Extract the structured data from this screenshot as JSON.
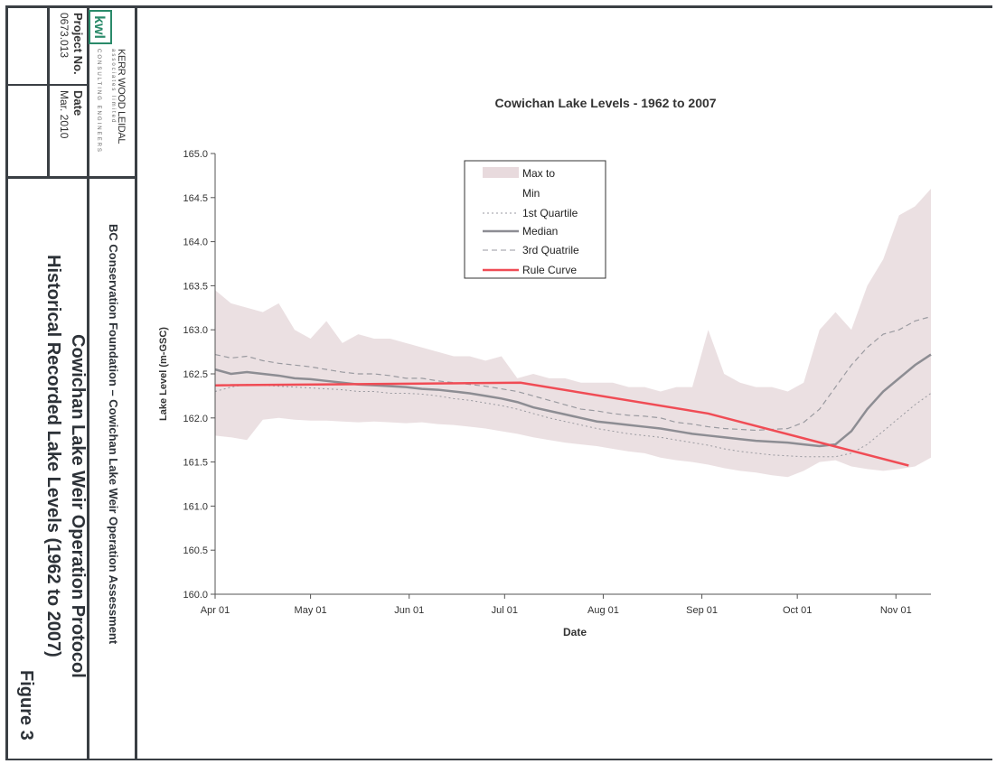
{
  "title_block": {
    "company": "KERR WOOD LEIDAL",
    "company_tagline": "associates limited",
    "company_sub": "CONSULTING ENGINEERS",
    "logo_text": "kwl",
    "project_no_label": "Project No.",
    "project_no": "0673.013",
    "date_label": "Date",
    "date": "Mar. 2010",
    "client_line": "BC Conservation Foundation – Cowichan Lake Weir Operation Assessment",
    "main_title": "Cowichan Lake Weir Operation Protocol",
    "sub_title": "Historical Recorded Lake Levels (1962 to 2007)",
    "figure": "Figure 3"
  },
  "colors": {
    "band": "#e8dadd",
    "median": "#8d8d93",
    "quartile": "#9a9aa0",
    "rule": "#f04c55",
    "border": "#3a3f44"
  },
  "chart_data": {
    "type": "area",
    "title": "Cowichan Lake Levels - 1962 to 2007",
    "xlabel": "Date",
    "ylabel": "Lake Level (m-GSC)",
    "ylim": [
      160.0,
      165.0
    ],
    "xlim": [
      0,
      225
    ],
    "y_ticks": [
      "165.0",
      "164.5",
      "164.0",
      "163.5",
      "163.0",
      "162.5",
      "162.0",
      "161.5",
      "161.0",
      "160.5",
      "160.0"
    ],
    "x_ticks": [
      {
        "day": 0,
        "label": "Apr 01"
      },
      {
        "day": 30,
        "label": "May 01"
      },
      {
        "day": 61,
        "label": "Jun 01"
      },
      {
        "day": 91,
        "label": "Jul 01"
      },
      {
        "day": 122,
        "label": "Aug 01"
      },
      {
        "day": 153,
        "label": "Sep 01"
      },
      {
        "day": 183,
        "label": "Oct 01"
      },
      {
        "day": 214,
        "label": "Nov 01"
      }
    ],
    "legend": {
      "position": "top-center",
      "entries": [
        {
          "label": "Max  to",
          "label2": "Min",
          "style": "band"
        },
        {
          "label": "1st Quartile",
          "style": "dotted"
        },
        {
          "label": "Median",
          "style": "solid-grey"
        },
        {
          "label": "3rd Quatrile",
          "style": "dashed"
        },
        {
          "label": "Rule Curve",
          "style": "solid-red"
        }
      ]
    },
    "x": [
      0,
      5,
      10,
      15,
      20,
      25,
      30,
      35,
      40,
      45,
      50,
      55,
      60,
      65,
      70,
      75,
      80,
      85,
      90,
      95,
      100,
      105,
      110,
      115,
      120,
      125,
      130,
      135,
      140,
      145,
      150,
      155,
      160,
      165,
      170,
      175,
      180,
      185,
      190,
      195,
      200,
      205,
      210,
      215,
      220,
      225
    ],
    "series": [
      {
        "name": "Max",
        "values": [
          163.45,
          163.3,
          163.25,
          163.2,
          163.3,
          163.0,
          162.9,
          163.1,
          162.85,
          162.95,
          162.9,
          162.9,
          162.85,
          162.8,
          162.75,
          162.7,
          162.7,
          162.65,
          162.7,
          162.45,
          162.5,
          162.45,
          162.45,
          162.4,
          162.4,
          162.4,
          162.35,
          162.35,
          162.3,
          162.35,
          162.35,
          163.0,
          162.5,
          162.4,
          162.35,
          162.35,
          162.3,
          162.4,
          163.0,
          163.2,
          163.0,
          163.5,
          163.8,
          164.3,
          164.4,
          164.6
        ]
      },
      {
        "name": "3rd Quatrile",
        "values": [
          162.72,
          162.68,
          162.7,
          162.65,
          162.62,
          162.6,
          162.58,
          162.55,
          162.52,
          162.5,
          162.5,
          162.48,
          162.45,
          162.45,
          162.42,
          162.4,
          162.38,
          162.36,
          162.33,
          162.3,
          162.25,
          162.2,
          162.15,
          162.1,
          162.08,
          162.05,
          162.03,
          162.02,
          162.0,
          161.95,
          161.93,
          161.9,
          161.88,
          161.87,
          161.86,
          161.87,
          161.88,
          161.95,
          162.1,
          162.35,
          162.6,
          162.8,
          162.95,
          163.0,
          163.1,
          163.15
        ]
      },
      {
        "name": "Median",
        "values": [
          162.55,
          162.5,
          162.52,
          162.5,
          162.48,
          162.45,
          162.44,
          162.42,
          162.4,
          162.38,
          162.37,
          162.36,
          162.35,
          162.33,
          162.32,
          162.3,
          162.28,
          162.25,
          162.22,
          162.18,
          162.12,
          162.08,
          162.04,
          162.0,
          161.96,
          161.94,
          161.92,
          161.9,
          161.88,
          161.85,
          161.82,
          161.8,
          161.78,
          161.76,
          161.74,
          161.73,
          161.72,
          161.7,
          161.68,
          161.7,
          161.85,
          162.1,
          162.3,
          162.45,
          162.6,
          162.72
        ]
      },
      {
        "name": "1st Quartile",
        "values": [
          162.3,
          162.35,
          162.38,
          162.37,
          162.36,
          162.35,
          162.34,
          162.33,
          162.32,
          162.3,
          162.3,
          162.28,
          162.28,
          162.27,
          162.25,
          162.22,
          162.2,
          162.17,
          162.14,
          162.1,
          162.05,
          162.0,
          161.96,
          161.92,
          161.88,
          161.85,
          161.82,
          161.8,
          161.78,
          161.75,
          161.72,
          161.69,
          161.65,
          161.62,
          161.6,
          161.58,
          161.57,
          161.56,
          161.56,
          161.56,
          161.6,
          161.7,
          161.85,
          162.0,
          162.15,
          162.28
        ]
      },
      {
        "name": "Min",
        "values": [
          161.8,
          161.78,
          161.75,
          161.98,
          162.0,
          161.98,
          161.97,
          161.97,
          161.96,
          161.95,
          161.96,
          161.95,
          161.94,
          161.95,
          161.93,
          161.92,
          161.9,
          161.88,
          161.85,
          161.82,
          161.78,
          161.75,
          161.72,
          161.7,
          161.68,
          161.65,
          161.62,
          161.6,
          161.55,
          161.52,
          161.5,
          161.47,
          161.43,
          161.4,
          161.38,
          161.35,
          161.33,
          161.4,
          161.5,
          161.52,
          161.45,
          161.42,
          161.4,
          161.42,
          161.45,
          161.55
        ]
      },
      {
        "name": "Rule Curve",
        "x": [
          0,
          96,
          155,
          218
        ],
        "values": [
          162.37,
          162.4,
          162.05,
          161.46
        ]
      }
    ]
  }
}
